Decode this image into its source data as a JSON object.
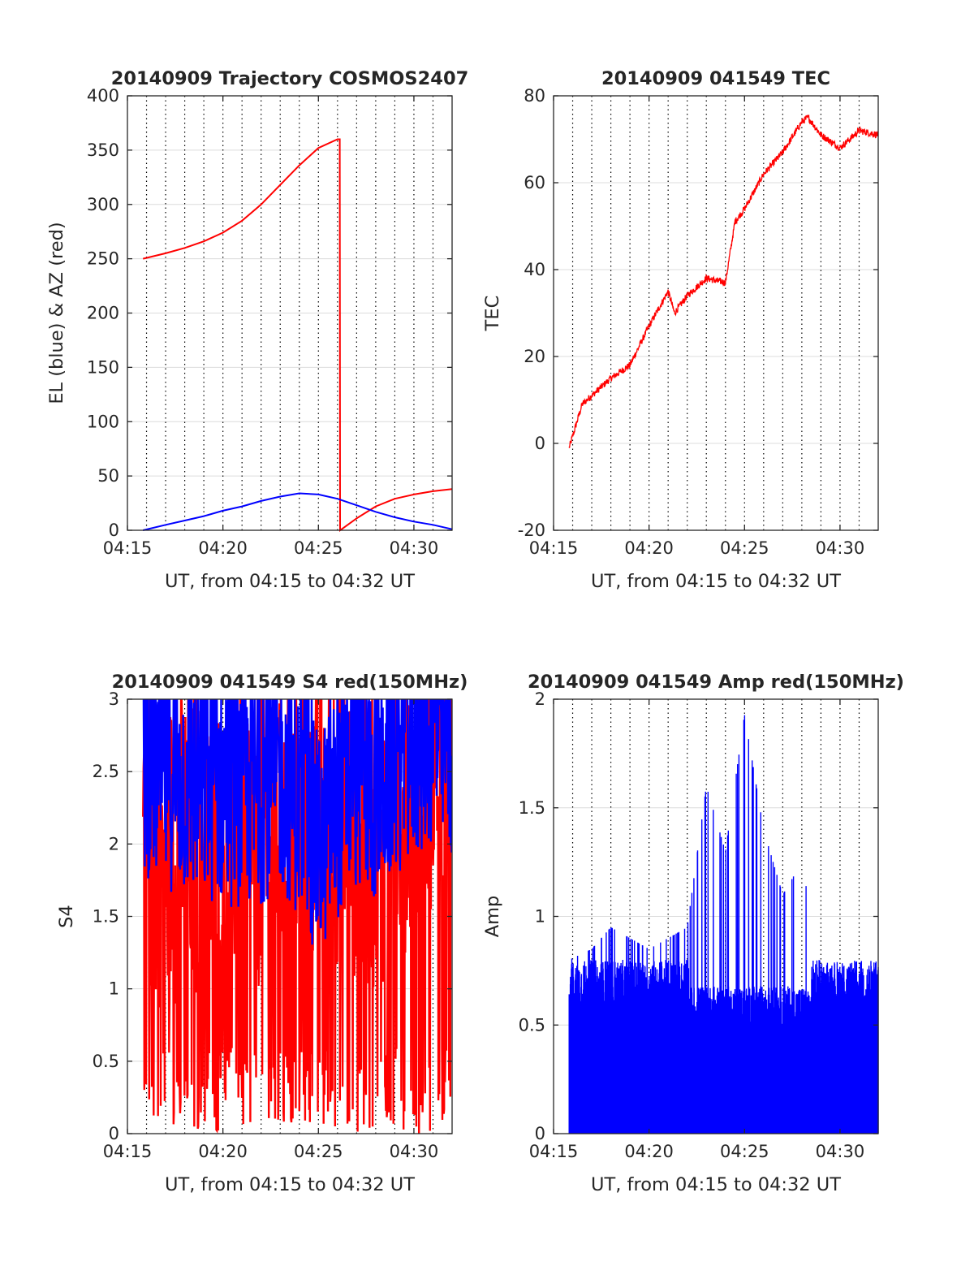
{
  "chart_data": [
    {
      "type": "line",
      "title": "20140909 Trajectory COSMOS2407",
      "xlabel": "UT, from 04:15 to 04:32 UT",
      "ylabel": "EL (blue) & AZ (red)",
      "xlim": [
        "04:15",
        "04:32"
      ],
      "ylim": [
        0,
        400
      ],
      "xticks": [
        "04:15",
        "04:20",
        "04:25",
        "04:30"
      ],
      "yticks": [
        0,
        50,
        100,
        150,
        200,
        250,
        300,
        350,
        400
      ],
      "grid": "on",
      "colors": {
        "EL": "#0000ff",
        "AZ": "#ff0000"
      },
      "series": [
        {
          "id": "AZ",
          "color": "#ff0000",
          "x": [
            "04:15:49",
            "04:17:00",
            "04:18:00",
            "04:19:00",
            "04:20:00",
            "04:21:00",
            "04:22:00",
            "04:23:00",
            "04:24:00",
            "04:25:00",
            "04:26:00",
            "04:26:07",
            "04:26:08",
            "04:27:00",
            "04:28:00",
            "04:29:00",
            "04:30:00",
            "04:31:00",
            "04:32:00"
          ],
          "y": [
            250,
            255,
            260,
            266,
            274,
            285,
            300,
            318,
            336,
            352,
            360,
            360,
            0,
            11,
            22,
            29,
            33,
            36,
            38
          ]
        },
        {
          "id": "EL",
          "color": "#0000ff",
          "x": [
            "04:15:49",
            "04:17:00",
            "04:18:00",
            "04:19:00",
            "04:20:00",
            "04:21:00",
            "04:22:00",
            "04:23:00",
            "04:24:00",
            "04:25:00",
            "04:26:00",
            "04:27:00",
            "04:28:00",
            "04:29:00",
            "04:30:00",
            "04:31:00",
            "04:32:00"
          ],
          "y": [
            0,
            5,
            9,
            13,
            18,
            22,
            27,
            31,
            34,
            33,
            29,
            23,
            17,
            12,
            8,
            5,
            1
          ]
        }
      ]
    },
    {
      "type": "line",
      "title": "20140909 041549 TEC",
      "xlabel": "UT, from 04:15 to 04:32 UT",
      "ylabel": "TEC",
      "xlim": [
        "04:15",
        "04:32"
      ],
      "ylim": [
        -20,
        80
      ],
      "xticks": [
        "04:15",
        "04:20",
        "04:25",
        "04:30"
      ],
      "yticks": [
        -20,
        0,
        20,
        40,
        60,
        80
      ],
      "grid": "on",
      "colors": {
        "TEC": "#ff0000"
      },
      "series": [
        {
          "color": "#ff0000",
          "x": [
            "04:15:49",
            "04:16:30",
            "04:17:00",
            "04:18:00",
            "04:19:00",
            "04:20:00",
            "04:21:00",
            "04:21:20",
            "04:22:00",
            "04:23:00",
            "04:24:00",
            "04:24:30",
            "04:25:00",
            "04:26:00",
            "04:27:00",
            "04:28:00",
            "04:28:20",
            "04:29:00",
            "04:30:00",
            "04:31:00",
            "04:32:00"
          ],
          "y": [
            -1,
            9,
            11,
            15,
            18,
            27,
            35,
            30,
            34,
            38,
            37,
            51,
            54,
            62,
            67,
            74,
            75,
            71,
            68,
            72,
            71
          ]
        }
      ]
    },
    {
      "type": "line",
      "title": "20140909 041549 S4 red(150MHz)",
      "xlabel": "UT, from 04:15 to 04:32 UT",
      "ylabel": "S4",
      "xlim": [
        "04:15",
        "04:32"
      ],
      "ylim": [
        0,
        3
      ],
      "xticks": [
        "04:15",
        "04:20",
        "04:25",
        "04:30"
      ],
      "yticks": [
        0,
        0.5,
        1,
        1.5,
        2,
        2.5,
        3
      ],
      "grid": "on",
      "colors": {
        "red": "#ff0000",
        "blue": "#0000ff"
      },
      "series": [
        {
          "color": "#ff0000",
          "x": [
            "04:15:49",
            "04:17:00",
            "04:18:00",
            "04:19:00",
            "04:20:00",
            "04:21:00",
            "04:22:00",
            "04:23:00",
            "04:24:00",
            "04:25:00",
            "04:26:00",
            "04:27:00",
            "04:28:00",
            "04:29:00",
            "04:30:00",
            "04:31:00",
            "04:32:00"
          ],
          "y": [
            1.55,
            1.5,
            1.6,
            1.55,
            1.7,
            1.6,
            1.65,
            1.7,
            1.75,
            1.9,
            1.8,
            1.7,
            1.6,
            1.8,
            2.0,
            2.2,
            2.4
          ]
        },
        {
          "color": "#0000ff",
          "x": [
            "04:15:49",
            "04:17:00",
            "04:18:00",
            "04:19:00",
            "04:20:00",
            "04:21:00",
            "04:22:00",
            "04:23:00",
            "04:24:00",
            "04:25:00",
            "04:26:00",
            "04:27:00",
            "04:28:00",
            "04:29:00",
            "04:30:00",
            "04:31:00",
            "04:32:00"
          ],
          "y": [
            2.5,
            2.4,
            2.35,
            2.3,
            2.3,
            2.25,
            2.3,
            2.4,
            2.2,
            1.9,
            2.2,
            2.4,
            2.3,
            2.5,
            2.6,
            2.7,
            2.6
          ]
        }
      ]
    },
    {
      "type": "line",
      "title": "20140909 041549 Amp red(150MHz)",
      "xlabel": "UT, from 04:15 to 04:32 UT",
      "ylabel": "Amp",
      "xlim": [
        "04:15",
        "04:32"
      ],
      "ylim": [
        0,
        2
      ],
      "xticks": [
        "04:15",
        "04:20",
        "04:25",
        "04:30"
      ],
      "yticks": [
        0,
        0.5,
        1,
        1.5,
        2
      ],
      "grid": "on",
      "colors": {
        "red": "#ff0000",
        "blue": "#0000ff"
      },
      "series": [
        {
          "color": "#0000ff",
          "x": [
            "04:15:49",
            "04:17:00",
            "04:18:00",
            "04:19:00",
            "04:20:00",
            "04:21:00",
            "04:22:00",
            "04:23:00",
            "04:24:00",
            "04:25:00",
            "04:26:00",
            "04:27:00",
            "04:28:00",
            "04:29:00",
            "04:30:00",
            "04:31:00",
            "04:32:00"
          ],
          "y": [
            0.8,
            0.85,
            0.95,
            0.9,
            0.85,
            0.9,
            0.95,
            1.6,
            1.3,
            1.93,
            1.4,
            1.1,
            1.25,
            0.75,
            0.7,
            0.7,
            0.6
          ]
        }
      ]
    }
  ]
}
